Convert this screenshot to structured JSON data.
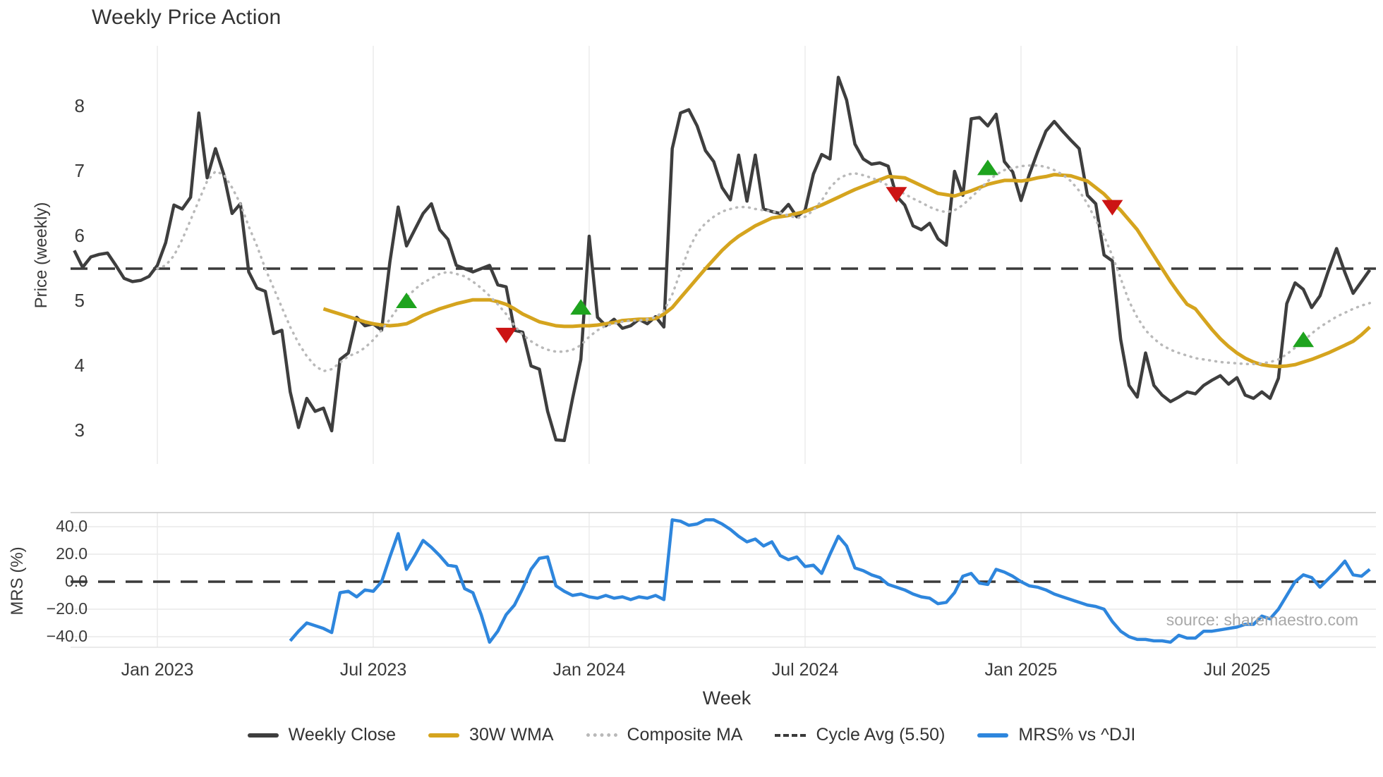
{
  "title": "Weekly Price Action",
  "source_note": "source: sharemaestro.com",
  "price_panel": {
    "ylabel": "Price (weekly)",
    "yticks": [
      {
        "v": 8,
        "label": "8"
      },
      {
        "v": 7,
        "label": "7"
      },
      {
        "v": 6,
        "label": "6"
      },
      {
        "v": 5,
        "label": "5"
      },
      {
        "v": 4,
        "label": "4"
      },
      {
        "v": 3,
        "label": "3"
      }
    ],
    "cycle_avg_value": 5.5
  },
  "mrs_panel": {
    "ylabel": "MRS (%)",
    "yticks": [
      {
        "v": 40,
        "label": "40.0"
      },
      {
        "v": 20,
        "label": "20.0"
      },
      {
        "v": 0,
        "label": "0.0"
      },
      {
        "v": -20,
        "label": "−20.0"
      },
      {
        "v": -40,
        "label": "−40.0"
      }
    ],
    "zero_line": 0
  },
  "xaxis": {
    "label": "Week",
    "ticks": [
      {
        "week": 10,
        "label": "Jan 2023"
      },
      {
        "week": 36,
        "label": "Jul 2023"
      },
      {
        "week": 62,
        "label": "Jan 2024"
      },
      {
        "week": 88,
        "label": "Jul 2024"
      },
      {
        "week": 114,
        "label": "Jan 2025"
      },
      {
        "week": 140,
        "label": "Jul 2025"
      }
    ]
  },
  "legend": {
    "items": [
      {
        "label": "Weekly Close",
        "type": "solid",
        "color": "#3e3e3e",
        "name": "legend-weekly-close"
      },
      {
        "label": "30W WMA",
        "type": "solid",
        "color": "#d5a41e",
        "name": "legend-30w-wma"
      },
      {
        "label": "Composite MA",
        "type": "dotted",
        "color": "#b9b9b9",
        "name": "legend-composite-ma"
      },
      {
        "label": "Cycle Avg (5.50)",
        "type": "dashed",
        "color": "#3a3a3a",
        "name": "legend-cycle-avg"
      },
      {
        "label": "MRS% vs ^DJI",
        "type": "solid",
        "color": "#2e86dd",
        "name": "legend-mrs"
      }
    ]
  },
  "colors": {
    "close": "#3e3e3e",
    "wma": "#d5a41e",
    "composite": "#b9b9b9",
    "dashed": "#3a3a3a",
    "mrs": "#2e86dd",
    "buy": "#1ea31e",
    "sell": "#cc1414",
    "grid": "#ededed",
    "mrs_grid": "#e9e9e9",
    "panel_border": "#c9c9c9"
  },
  "chart_data": {
    "type": "line",
    "x_unit": "week_index",
    "price_ylim": [
      2.6,
      8.7
    ],
    "mrs_ylim": [
      -50,
      50
    ],
    "grid": "vertical-on-both, horizontal-on-mrs",
    "legend_position": "bottom-center",
    "cycle_avg": 5.5,
    "series": [
      {
        "name": "Weekly Close",
        "panel": "price",
        "color": "#3e3e3e",
        "style": "solid",
        "start_week": 0,
        "values": [
          5.78,
          5.52,
          5.68,
          5.72,
          5.74,
          5.55,
          5.35,
          5.3,
          5.32,
          5.38,
          5.55,
          5.9,
          6.48,
          6.42,
          6.6,
          7.9,
          6.9,
          7.35,
          6.95,
          6.35,
          6.5,
          5.45,
          5.2,
          5.15,
          4.5,
          4.55,
          3.6,
          3.05,
          3.5,
          3.3,
          3.35,
          3.0,
          4.1,
          4.2,
          4.75,
          4.62,
          4.65,
          4.55,
          5.6,
          6.45,
          5.85,
          6.1,
          6.35,
          6.5,
          6.1,
          5.95,
          5.55,
          5.5,
          5.45,
          5.5,
          5.55,
          5.25,
          5.22,
          4.55,
          4.52,
          4.0,
          3.95,
          3.3,
          2.86,
          2.85,
          3.5,
          4.1,
          6.0,
          4.75,
          4.62,
          4.72,
          4.58,
          4.62,
          4.72,
          4.65,
          4.76,
          4.6,
          7.35,
          7.9,
          7.95,
          7.7,
          7.32,
          7.15,
          6.75,
          6.56,
          7.25,
          6.54,
          7.25,
          6.42,
          6.38,
          6.35,
          6.49,
          6.3,
          6.4,
          6.96,
          7.26,
          7.19,
          8.45,
          8.1,
          7.42,
          7.19,
          7.11,
          7.13,
          7.08,
          6.62,
          6.48,
          6.16,
          6.1,
          6.2,
          5.96,
          5.86,
          7.0,
          6.63,
          7.81,
          7.83,
          7.7,
          7.88,
          7.15,
          6.99,
          6.55,
          6.95,
          7.3,
          7.62,
          7.77,
          7.62,
          7.48,
          7.35,
          6.63,
          6.5,
          5.71,
          5.62,
          4.41,
          3.7,
          3.52,
          4.2,
          3.7,
          3.55,
          3.45,
          3.52,
          3.6,
          3.57,
          3.7,
          3.78,
          3.85,
          3.72,
          3.82,
          3.55,
          3.5,
          3.6,
          3.5,
          3.81,
          4.96,
          5.28,
          5.18,
          4.9,
          5.08,
          5.46,
          5.81,
          5.44,
          5.12,
          5.3,
          5.48
        ]
      },
      {
        "name": "30W WMA",
        "panel": "price",
        "color": "#d5a41e",
        "style": "solid",
        "start_week": 30,
        "values": [
          4.88,
          4.84,
          4.8,
          4.76,
          4.72,
          4.68,
          4.65,
          4.63,
          4.62,
          4.63,
          4.65,
          4.71,
          4.78,
          4.83,
          4.88,
          4.92,
          4.96,
          4.99,
          5.02,
          5.02,
          5.02,
          4.99,
          4.95,
          4.88,
          4.8,
          4.74,
          4.68,
          4.65,
          4.62,
          4.61,
          4.61,
          4.62,
          4.62,
          4.63,
          4.65,
          4.67,
          4.7,
          4.71,
          4.72,
          4.72,
          4.73,
          4.8,
          4.9,
          5.05,
          5.2,
          5.35,
          5.5,
          5.64,
          5.78,
          5.9,
          6.0,
          6.08,
          6.16,
          6.22,
          6.28,
          6.3,
          6.32,
          6.35,
          6.38,
          6.43,
          6.48,
          6.54,
          6.6,
          6.66,
          6.72,
          6.77,
          6.82,
          6.87,
          6.92,
          6.91,
          6.9,
          6.84,
          6.78,
          6.72,
          6.66,
          6.64,
          6.62,
          6.66,
          6.7,
          6.75,
          6.8,
          6.83,
          6.86,
          6.86,
          6.85,
          6.87,
          6.9,
          6.92,
          6.95,
          6.94,
          6.93,
          6.89,
          6.85,
          6.75,
          6.65,
          6.52,
          6.4,
          6.25,
          6.1,
          5.9,
          5.7,
          5.5,
          5.3,
          5.12,
          4.95,
          4.88,
          4.72,
          4.56,
          4.42,
          4.3,
          4.2,
          4.12,
          4.06,
          4.02,
          4.0,
          3.99,
          4.0,
          4.02,
          4.06,
          4.1,
          4.15,
          4.2,
          4.26,
          4.32,
          4.38,
          4.48,
          4.6
        ]
      },
      {
        "name": "Composite MA",
        "panel": "price",
        "color": "#b9b9b9",
        "style": "dotted",
        "start_week": 10,
        "values": [
          5.5,
          5.55,
          5.7,
          5.95,
          6.25,
          6.55,
          6.85,
          7.0,
          6.95,
          6.75,
          6.5,
          6.15,
          5.85,
          5.5,
          5.2,
          4.9,
          4.6,
          4.35,
          4.15,
          4.0,
          3.92,
          3.95,
          4.05,
          4.15,
          4.2,
          4.28,
          4.4,
          4.55,
          4.72,
          4.9,
          5.05,
          5.18,
          5.28,
          5.35,
          5.42,
          5.45,
          5.42,
          5.38,
          5.3,
          5.2,
          5.08,
          4.95,
          4.8,
          4.62,
          4.48,
          4.38,
          4.3,
          4.25,
          4.22,
          4.22,
          4.25,
          4.32,
          4.45,
          4.55,
          4.62,
          4.65,
          4.68,
          4.7,
          4.7,
          4.72,
          4.75,
          4.85,
          5.1,
          5.45,
          5.8,
          6.05,
          6.2,
          6.3,
          6.38,
          6.42,
          6.45,
          6.45,
          6.42,
          6.4,
          6.38,
          6.36,
          6.32,
          6.28,
          6.3,
          6.4,
          6.55,
          6.75,
          6.88,
          6.95,
          6.97,
          6.94,
          6.9,
          6.85,
          6.78,
          6.72,
          6.65,
          6.58,
          6.52,
          6.45,
          6.4,
          6.37,
          6.4,
          6.48,
          6.6,
          6.72,
          6.85,
          6.95,
          7.02,
          7.05,
          7.08,
          7.09,
          7.09,
          7.07,
          7.02,
          6.95,
          6.85,
          6.7,
          6.5,
          6.25,
          6.0,
          5.7,
          5.35,
          5.0,
          4.75,
          4.55,
          4.42,
          4.32,
          4.25,
          4.2,
          4.16,
          4.12,
          4.1,
          4.08,
          4.06,
          4.05,
          4.04,
          4.03,
          4.03,
          4.04,
          4.06,
          4.1,
          4.18,
          4.28,
          4.38,
          4.5,
          4.6,
          4.68,
          4.76,
          4.82,
          4.88,
          4.93,
          4.97
        ]
      },
      {
        "name": "MRS% vs ^DJI",
        "panel": "mrs",
        "color": "#2e86dd",
        "style": "solid",
        "start_week": 26,
        "values": [
          -43,
          -36,
          -30,
          -32,
          -34,
          -37,
          -8,
          -7,
          -11,
          -6,
          -7,
          0,
          18,
          35,
          9,
          19,
          30,
          25,
          19,
          12,
          11,
          -5,
          -8,
          -24,
          -44,
          -36,
          -24,
          -17,
          -5,
          9,
          17,
          18,
          -3,
          -7,
          -10,
          -9,
          -11,
          -12,
          -10,
          -12,
          -11,
          -13,
          -11,
          -12,
          -10,
          -13,
          45,
          44,
          41,
          42,
          45,
          45,
          42,
          38,
          33,
          29,
          31,
          26,
          29,
          19,
          16,
          18,
          11,
          12,
          6,
          20,
          33,
          26,
          10,
          8,
          5,
          3,
          -2,
          -4,
          -6,
          -9,
          -11,
          -12,
          -16,
          -15,
          -8,
          4,
          6,
          -1,
          -2,
          9,
          7,
          4,
          0,
          -3,
          -4,
          -6,
          -9,
          -11,
          -13,
          -15,
          -17,
          -18,
          -20,
          -29,
          -36,
          -40,
          -42,
          -42,
          -43,
          -43,
          -44,
          -39,
          -41,
          -41,
          -36,
          -36,
          -35,
          -34,
          -33,
          -31,
          -31,
          -25,
          -27,
          -20,
          -10,
          0,
          5,
          3,
          -4,
          2,
          8,
          15,
          5,
          4,
          9
        ]
      }
    ],
    "markers": {
      "buy": [
        {
          "week": 40,
          "value": 5.0
        },
        {
          "week": 61,
          "value": 4.9
        },
        {
          "week": 110,
          "value": 7.05
        },
        {
          "week": 148,
          "value": 4.4
        }
      ],
      "sell": [
        {
          "week": 52,
          "value": 4.48
        },
        {
          "week": 99,
          "value": 6.65
        },
        {
          "week": 125,
          "value": 6.45
        }
      ]
    }
  }
}
